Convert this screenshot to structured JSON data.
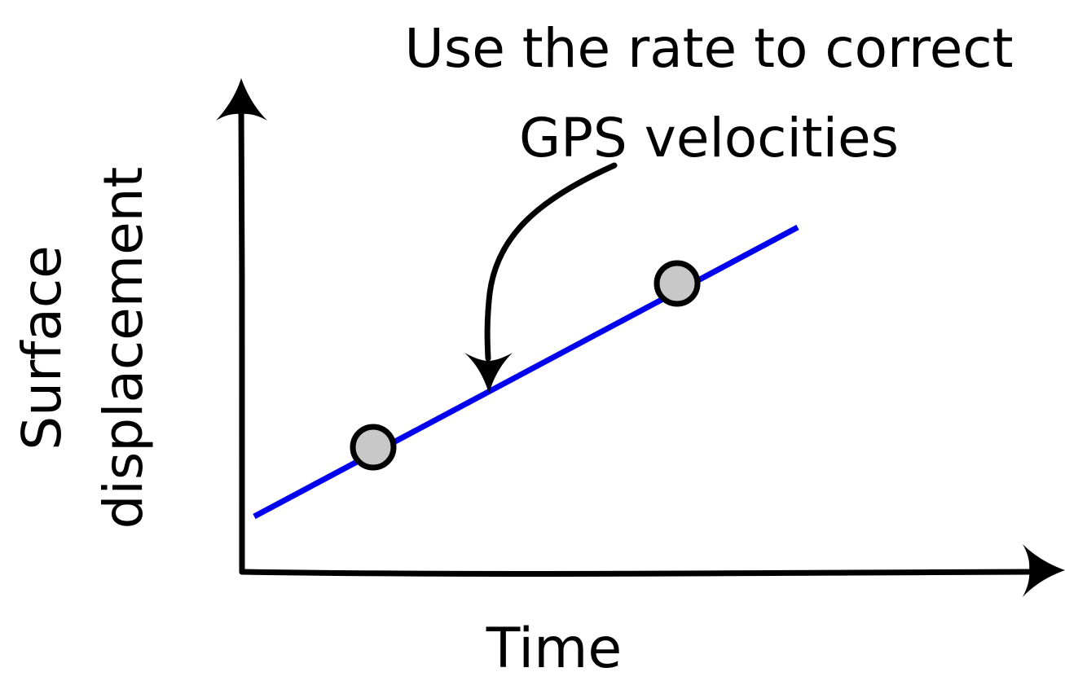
{
  "annotation": {
    "line1": "Use the rate to correct",
    "line2": "GPS velocities"
  },
  "axes": {
    "x_label": "Time",
    "y_label_line1": "Surface",
    "y_label_line2": "displacement"
  },
  "colors": {
    "trend_line": "#0000ee",
    "data_point_fill": "#c8c8c8",
    "ink": "#000000"
  }
}
